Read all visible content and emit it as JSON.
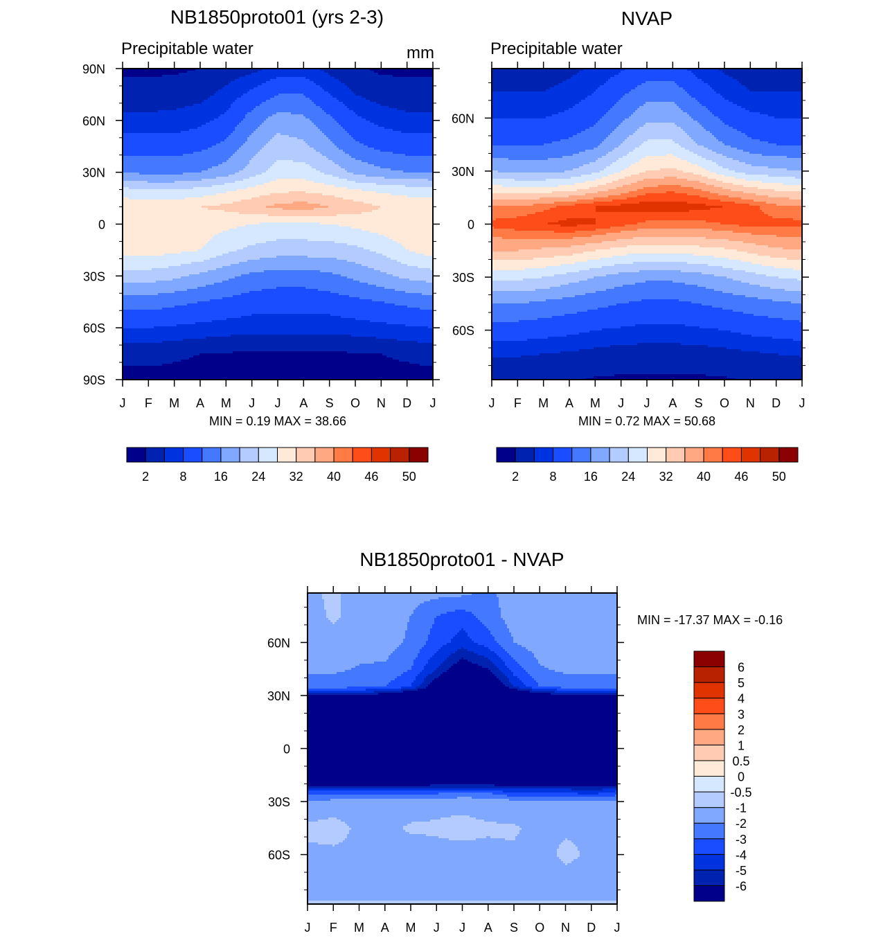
{
  "colors": [
    "#00008b",
    "#0022b0",
    "#0033e0",
    "#1a4dff",
    "#4478ff",
    "#80a8ff",
    "#b3cbff",
    "#d6e8ff",
    "#ffead9",
    "#ffcbb3",
    "#ffa882",
    "#ff7a45",
    "#ff4d1a",
    "#e03300",
    "#b82200",
    "#8b0000"
  ],
  "chart_data": [
    {
      "type": "heatmap",
      "title": "NB1850proto01 (yrs 2-3)",
      "left_string": "Precipitable water",
      "right_string": "mm",
      "minmax": "MIN =   0.19 MAX =  38.66",
      "xticklabels": [
        "J",
        "F",
        "M",
        "A",
        "M",
        "J",
        "J",
        "A",
        "S",
        "O",
        "N",
        "D",
        "J"
      ],
      "yticks": [
        90,
        60,
        30,
        0,
        -30,
        -60,
        -90
      ],
      "yticklabels": [
        "90N",
        "60N",
        "30N",
        "0",
        "30S",
        "60S",
        "90S"
      ],
      "ylim": [
        -90,
        90
      ],
      "levels": [
        2,
        5,
        8,
        12,
        16,
        20,
        24,
        28,
        32,
        36,
        40,
        43,
        46,
        48,
        50
      ],
      "colorbar_labels": [
        {
          "level": 2,
          "text": "2"
        },
        {
          "level": 8,
          "text": "8"
        },
        {
          "level": 16,
          "text": "16"
        },
        {
          "level": 24,
          "text": "24"
        },
        {
          "level": 32,
          "text": "32"
        },
        {
          "level": 40,
          "text": "40"
        },
        {
          "level": 46,
          "text": "46"
        },
        {
          "level": 50,
          "text": "50"
        }
      ],
      "lat": [
        90,
        75,
        60,
        45,
        30,
        20,
        10,
        0,
        -15,
        -30,
        -45,
        -60,
        -75,
        -90
      ],
      "values": [
        [
          1.5,
          1.5,
          1.5,
          2,
          3,
          4,
          6,
          6,
          4,
          2.5,
          1.5,
          1.5,
          1.5
        ],
        [
          3,
          3,
          3.5,
          4,
          6,
          9,
          12,
          12,
          8,
          5,
          3.5,
          3,
          3
        ],
        [
          6,
          6,
          6,
          7,
          9,
          14,
          18,
          17,
          13,
          9,
          7,
          6,
          6
        ],
        [
          10,
          10,
          10,
          11,
          13,
          18,
          22,
          21,
          17,
          13,
          11,
          10,
          10
        ],
        [
          16,
          15,
          15,
          16,
          18,
          22,
          26,
          26,
          23,
          19,
          17,
          16,
          16
        ],
        [
          25,
          24,
          24,
          25,
          27,
          29,
          31,
          31,
          30,
          28,
          27,
          26,
          25
        ],
        [
          31,
          31,
          31,
          32,
          33,
          35,
          37,
          38,
          36,
          34,
          32,
          31,
          31
        ],
        [
          31,
          31,
          31,
          30,
          29,
          28,
          27,
          27,
          28,
          29,
          30,
          31,
          31
        ],
        [
          30,
          30,
          29,
          28,
          25,
          23,
          22,
          22,
          22,
          23,
          25,
          28,
          30
        ],
        [
          22,
          22,
          21,
          19,
          17,
          15,
          14,
          14,
          15,
          17,
          19,
          21,
          22
        ],
        [
          14,
          14,
          13,
          12,
          11,
          10,
          9.5,
          9.5,
          10,
          11,
          12,
          13,
          14
        ],
        [
          8,
          8,
          7.5,
          7,
          6.5,
          6,
          6,
          6,
          6,
          6.5,
          7,
          7.5,
          8
        ],
        [
          3,
          3,
          2.5,
          2,
          1.8,
          1.6,
          1.6,
          1.6,
          1.6,
          1.8,
          2,
          2.5,
          3
        ],
        [
          1,
          1,
          1,
          1,
          1,
          1,
          1,
          1,
          1,
          1,
          1,
          1,
          1
        ]
      ]
    },
    {
      "type": "heatmap",
      "title": "NVAP",
      "left_string": "Precipitable water",
      "minmax": "MIN =   0.72 MAX =  50.68",
      "xticklabels": [
        "J",
        "F",
        "M",
        "A",
        "M",
        "J",
        "J",
        "A",
        "S",
        "O",
        "N",
        "D",
        "J"
      ],
      "yticks": [
        60,
        30,
        0,
        -30,
        -60
      ],
      "yticklabels": [
        "60N",
        "30N",
        "0",
        "30S",
        "60S"
      ],
      "ylim": [
        -88,
        88
      ],
      "levels": [
        2,
        5,
        8,
        12,
        16,
        20,
        24,
        28,
        32,
        36,
        40,
        43,
        46,
        48,
        50
      ],
      "colorbar_labels": [
        {
          "level": 2,
          "text": "2"
        },
        {
          "level": 8,
          "text": "8"
        },
        {
          "level": 16,
          "text": "16"
        },
        {
          "level": 24,
          "text": "24"
        },
        {
          "level": 32,
          "text": "32"
        },
        {
          "level": 40,
          "text": "40"
        },
        {
          "level": 46,
          "text": "46"
        },
        {
          "level": 50,
          "text": "50"
        }
      ],
      "lat": [
        90,
        75,
        60,
        45,
        30,
        20,
        10,
        0,
        -15,
        -30,
        -45,
        -60,
        -75,
        -90
      ],
      "values": [
        [
          3,
          3,
          3,
          4,
          5,
          7,
          9,
          9,
          6,
          4,
          3,
          3,
          3
        ],
        [
          5,
          5,
          5,
          6,
          8,
          11,
          14,
          14,
          10,
          7,
          5,
          5,
          5
        ],
        [
          8,
          8,
          8,
          9,
          11,
          15,
          19,
          19,
          15,
          11,
          9,
          8,
          8
        ],
        [
          12,
          12,
          12,
          13,
          15,
          20,
          25,
          25,
          20,
          16,
          13,
          12,
          12
        ],
        [
          20,
          19,
          19,
          20,
          23,
          28,
          32,
          33,
          30,
          25,
          22,
          21,
          20
        ],
        [
          30,
          29,
          29,
          30,
          33,
          37,
          41,
          42,
          40,
          36,
          33,
          31,
          30
        ],
        [
          40,
          40,
          42,
          44,
          46,
          47,
          48,
          48,
          47,
          46,
          44,
          41,
          40
        ],
        [
          44,
          45,
          46,
          47,
          46,
          44,
          42,
          42,
          42,
          43,
          44,
          44,
          44
        ],
        [
          36,
          36,
          35,
          34,
          32,
          30,
          29,
          29,
          30,
          31,
          33,
          35,
          36
        ],
        [
          25,
          25,
          24,
          22,
          20,
          18,
          17,
          17,
          18,
          20,
          22,
          24,
          25
        ],
        [
          16,
          16,
          15,
          14,
          13,
          12,
          11,
          11,
          12,
          13,
          14,
          15,
          16
        ],
        [
          10,
          10,
          9.5,
          9,
          8,
          7.5,
          7,
          7,
          7.5,
          8,
          9,
          9.5,
          10
        ],
        [
          5,
          5,
          4.5,
          4,
          3.5,
          3,
          3,
          3,
          3,
          3.5,
          4,
          4.5,
          5
        ],
        [
          2,
          2,
          2,
          2,
          1.5,
          1.5,
          1.5,
          1.5,
          1.5,
          1.5,
          2,
          2,
          2
        ]
      ]
    },
    {
      "type": "heatmap",
      "title": "NB1850proto01 - NVAP",
      "minmax": "MIN = -17.37 MAX =  -0.16",
      "xticklabels": [
        "J",
        "F",
        "M",
        "A",
        "M",
        "J",
        "J",
        "A",
        "S",
        "O",
        "N",
        "D",
        "J"
      ],
      "yticks": [
        60,
        30,
        0,
        -30,
        -60
      ],
      "yticklabels": [
        "60N",
        "30N",
        "0",
        "30S",
        "60S"
      ],
      "ylim": [
        -88,
        88
      ],
      "levels": [
        -6,
        -5,
        -4,
        -3,
        -2,
        -1,
        -0.5,
        0,
        0.5,
        1,
        2,
        3,
        4,
        5,
        6
      ],
      "colorbar_labels": [
        {
          "level": -6,
          "text": "-6"
        },
        {
          "level": -5,
          "text": "-5"
        },
        {
          "level": -4,
          "text": "-4"
        },
        {
          "level": -3,
          "text": "-3"
        },
        {
          "level": -2,
          "text": "-2"
        },
        {
          "level": -1,
          "text": "-1"
        },
        {
          "level": -0.5,
          "text": "-0.5"
        },
        {
          "level": 0,
          "text": "0"
        },
        {
          "level": 0.5,
          "text": "0.5"
        },
        {
          "level": 1,
          "text": "1"
        },
        {
          "level": 2,
          "text": "2"
        },
        {
          "level": 3,
          "text": "3"
        },
        {
          "level": 4,
          "text": "4"
        },
        {
          "level": 5,
          "text": "5"
        },
        {
          "level": 6,
          "text": "6"
        }
      ],
      "lat": [
        90,
        75,
        60,
        45,
        35,
        30,
        20,
        0,
        -15,
        -20,
        -25,
        -30,
        -45,
        -60,
        -75,
        -90
      ],
      "values": [
        [
          -1.2,
          -0.8,
          -1.5,
          -1.5,
          -1.5,
          -1.5,
          -1.5,
          -2.2,
          -1.5,
          -1.5,
          -1.5,
          -1.5,
          -1.2
        ],
        [
          -1.5,
          -0.8,
          -1.5,
          -1.5,
          -2,
          -3,
          -3.5,
          -2.5,
          -1.5,
          -1.5,
          -1.5,
          -1.5,
          -1.5
        ],
        [
          -1.5,
          -1.5,
          -1.5,
          -1.5,
          -2.2,
          -3.5,
          -4.5,
          -3.5,
          -2,
          -1.5,
          -1.5,
          -1.5,
          -1.2
        ],
        [
          -1.8,
          -1.8,
          -2.1,
          -2.2,
          -3,
          -5,
          -7,
          -6,
          -3.5,
          -2.1,
          -1.8,
          -1.8,
          -1.8
        ],
        [
          -2.5,
          -2.5,
          -2.8,
          -3,
          -4,
          -7,
          -9,
          -8,
          -5,
          -3,
          -2.5,
          -2.5,
          -2.5
        ],
        [
          -6,
          -6,
          -6,
          -7,
          -8,
          -10,
          -12,
          -11,
          -9,
          -7,
          -6.5,
          -6,
          -6
        ],
        [
          -10,
          -10,
          -10,
          -11,
          -12,
          -13,
          -14,
          -14,
          -13,
          -12,
          -11,
          -10,
          -10
        ],
        [
          -13,
          -13,
          -13,
          -13,
          -13,
          -13,
          -13,
          -13,
          -13,
          -13,
          -13,
          -13,
          -13
        ],
        [
          -9,
          -9,
          -9,
          -9,
          -9,
          -9,
          -9,
          -9,
          -9,
          -9,
          -9,
          -9,
          -9
        ],
        [
          -6.5,
          -6.5,
          -6.5,
          -6.5,
          -6.5,
          -6.5,
          -6.5,
          -6.5,
          -6.5,
          -6.5,
          -6.5,
          -6.5,
          -6.5
        ],
        [
          -3.5,
          -3.5,
          -3.5,
          -3.5,
          -3.5,
          -3.2,
          -3,
          -3,
          -4,
          -4,
          -4,
          -4.5,
          -3.5
        ],
        [
          -1.8,
          -1.6,
          -1.6,
          -1.4,
          -1.4,
          -1.2,
          -1.2,
          -1.3,
          -1.6,
          -1.6,
          -1.6,
          -1.6,
          -1.8
        ],
        [
          -0.8,
          -0.6,
          -1.2,
          -1.2,
          -0.9,
          -0.9,
          -0.8,
          -0.9,
          -0.9,
          -1.2,
          -1.2,
          -1.2,
          -1.5
        ],
        [
          -1.2,
          -1.2,
          -1.2,
          -1.2,
          -1.4,
          -1.2,
          -1.2,
          -1.2,
          -1.1,
          -1.5,
          -0.7,
          -1.2,
          -1.5
        ],
        [
          -1.5,
          -1.5,
          -1.5,
          -1.5,
          -1.5,
          -1.5,
          -1.5,
          -1.5,
          -1.5,
          -1.5,
          -1.5,
          -1.5,
          -1.5
        ],
        [
          -0.8,
          -0.8,
          -0.8,
          -0.8,
          -0.8,
          -0.8,
          -0.8,
          -0.8,
          -0.8,
          -0.8,
          -0.8,
          -0.8,
          -0.8
        ]
      ]
    }
  ]
}
